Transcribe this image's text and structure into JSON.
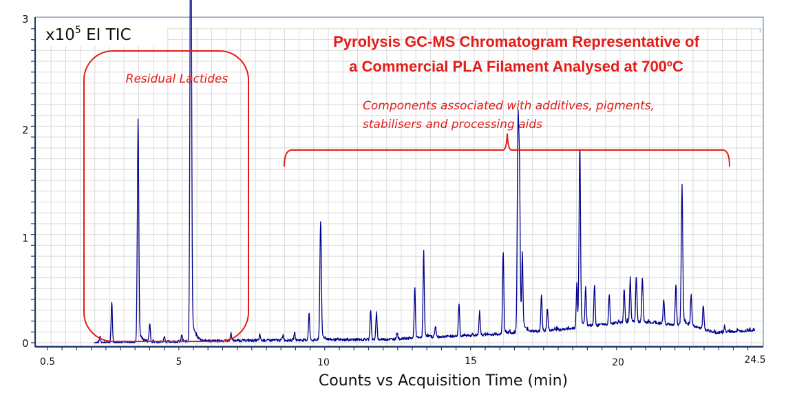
{
  "chart_data": {
    "type": "line",
    "title": "Pyrolysis GC-MS Chromatogram Representative of a Commercial PLA Filament Analysed at 700oC",
    "title_lines": [
      "Pyrolysis GC-MS Chromatogram Representative of",
      "a Commercial PLA Filament Analysed at 700ºC"
    ],
    "scale_label": {
      "prefix": "x10",
      "exponent": "5",
      "suffix": " EI TIC"
    },
    "xlabel": "Counts vs Acquisition Time (min)",
    "ylabel": "",
    "x_tick_labels": [
      "0.5",
      "5",
      "10",
      "15",
      "20",
      "24.5"
    ],
    "y_tick_labels": [
      "0",
      "1",
      "2",
      "3"
    ],
    "ylim": [
      0,
      3
    ],
    "xlim": [
      0.5,
      24.5
    ],
    "grid": true,
    "corner_mark": "1",
    "annotations": [
      {
        "label": "Residual Lactides",
        "type": "rounded-box",
        "x_range": [
          2.3,
          7.1
        ]
      },
      {
        "label_lines": [
          "Components associated with additives, pigments,",
          "stabilisers and processing aids"
        ],
        "type": "brace",
        "x_range": [
          8.5,
          23.9
        ]
      }
    ],
    "series": [
      {
        "name": "EI TIC",
        "color": "#00008b",
        "peaks": [
          {
            "time": 2.3,
            "height": 0.06
          },
          {
            "time": 2.7,
            "height": 0.38
          },
          {
            "time": 3.6,
            "height": 1.95
          },
          {
            "time": 4.0,
            "height": 0.17
          },
          {
            "time": 4.5,
            "height": 0.05
          },
          {
            "time": 5.1,
            "height": 0.06
          },
          {
            "time": 5.4,
            "height": 2.65
          },
          {
            "time": 5.42,
            "height": 2.12
          },
          {
            "time": 6.8,
            "height": 0.07
          },
          {
            "time": 7.8,
            "height": 0.05
          },
          {
            "time": 8.6,
            "height": 0.05
          },
          {
            "time": 9.0,
            "height": 0.07
          },
          {
            "time": 9.5,
            "height": 0.25
          },
          {
            "time": 9.9,
            "height": 1.1
          },
          {
            "time": 11.6,
            "height": 0.27
          },
          {
            "time": 11.8,
            "height": 0.25
          },
          {
            "time": 12.5,
            "height": 0.06
          },
          {
            "time": 13.1,
            "height": 0.46
          },
          {
            "time": 13.4,
            "height": 0.76
          },
          {
            "time": 13.8,
            "height": 0.1
          },
          {
            "time": 14.6,
            "height": 0.3
          },
          {
            "time": 15.3,
            "height": 0.2
          },
          {
            "time": 16.1,
            "height": 0.72
          },
          {
            "time": 16.6,
            "height": 1.74
          },
          {
            "time": 16.65,
            "height": 1.36
          },
          {
            "time": 16.75,
            "height": 0.63
          },
          {
            "time": 17.4,
            "height": 0.34
          },
          {
            "time": 17.6,
            "height": 0.2
          },
          {
            "time": 18.6,
            "height": 0.4
          },
          {
            "time": 18.7,
            "height": 1.64
          },
          {
            "time": 18.9,
            "height": 0.35
          },
          {
            "time": 19.2,
            "height": 0.38
          },
          {
            "time": 19.7,
            "height": 0.27
          },
          {
            "time": 20.2,
            "height": 0.3
          },
          {
            "time": 20.4,
            "height": 0.4
          },
          {
            "time": 20.6,
            "height": 0.42
          },
          {
            "time": 20.8,
            "height": 0.4
          },
          {
            "time": 21.5,
            "height": 0.22
          },
          {
            "time": 21.9,
            "height": 0.38
          },
          {
            "time": 22.1,
            "height": 1.23
          },
          {
            "time": 22.4,
            "height": 0.28
          },
          {
            "time": 22.8,
            "height": 0.22
          },
          {
            "time": 23.5,
            "height": 0.06
          }
        ],
        "baseline": [
          {
            "time": 2.1,
            "level": 0.0
          },
          {
            "time": 7.0,
            "level": 0.02
          },
          {
            "time": 12.0,
            "level": 0.03
          },
          {
            "time": 16.0,
            "level": 0.08
          },
          {
            "time": 18.0,
            "level": 0.12
          },
          {
            "time": 20.5,
            "level": 0.2
          },
          {
            "time": 22.5,
            "level": 0.15
          },
          {
            "time": 23.2,
            "level": 0.09
          },
          {
            "time": 24.5,
            "level": 0.12
          }
        ]
      }
    ]
  },
  "colors": {
    "trace": "#00008b",
    "annotation": "#e41b17",
    "grid": "#d9d9d9",
    "axis": "#1f3864",
    "frame": "#41719c"
  }
}
